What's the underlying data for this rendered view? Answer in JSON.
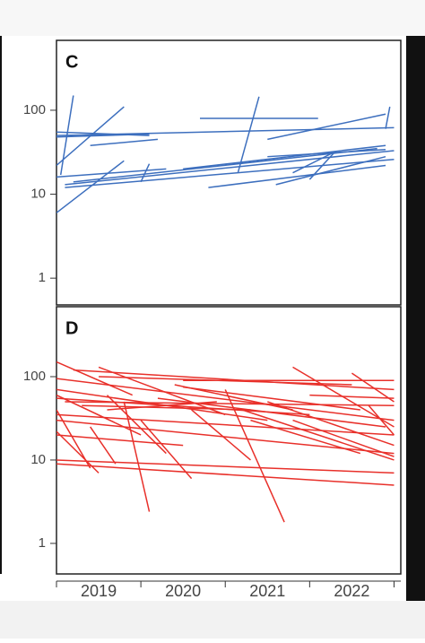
{
  "chart_data": [
    {
      "type": "line",
      "panel_label": "C",
      "log_y": true,
      "color": "#3d6fbe",
      "xlim": [
        2019,
        2023.08
      ],
      "ylim": [
        0.48,
        680
      ],
      "yticks": [
        1,
        10,
        100
      ],
      "series": [
        {
          "x": [
            2019.0,
            2020.1
          ],
          "values": [
            55,
            50
          ]
        },
        {
          "x": [
            2019.0,
            2020.1
          ],
          "values": [
            48,
            52
          ]
        },
        {
          "x": [
            2019.05,
            2019.2
          ],
          "values": [
            17,
            150
          ]
        },
        {
          "x": [
            2019.0,
            2019.8
          ],
          "values": [
            22,
            110
          ]
        },
        {
          "x": [
            2019.0,
            2020.3
          ],
          "values": [
            16,
            20
          ]
        },
        {
          "x": [
            2019.0,
            2019.8
          ],
          "values": [
            6,
            25
          ]
        },
        {
          "x": [
            2019.1,
            2023.0
          ],
          "values": [
            13,
            33
          ]
        },
        {
          "x": [
            2019.1,
            2023.0
          ],
          "values": [
            12,
            26
          ]
        },
        {
          "x": [
            2019.2,
            2022.8
          ],
          "values": [
            14,
            35
          ]
        },
        {
          "x": [
            2019.0,
            2023.0
          ],
          "values": [
            50,
            62
          ]
        },
        {
          "x": [
            2020.7,
            2022.1
          ],
          "values": [
            80,
            80
          ]
        },
        {
          "x": [
            2021.15,
            2021.4
          ],
          "values": [
            18,
            145
          ]
        },
        {
          "x": [
            2019.4,
            2020.2
          ],
          "values": [
            38,
            45
          ]
        },
        {
          "x": [
            2021.5,
            2022.9
          ],
          "values": [
            45,
            90
          ]
        },
        {
          "x": [
            2022.9,
            2022.95
          ],
          "values": [
            60,
            110
          ]
        },
        {
          "x": [
            2020.0,
            2020.1
          ],
          "values": [
            14,
            23
          ]
        },
        {
          "x": [
            2020.8,
            2022.9
          ],
          "values": [
            12,
            22
          ]
        },
        {
          "x": [
            2020.5,
            2022.9
          ],
          "values": [
            20,
            38
          ]
        },
        {
          "x": [
            2021.6,
            2022.9
          ],
          "values": [
            13,
            28
          ]
        },
        {
          "x": [
            2021.8,
            2022.3
          ],
          "values": [
            18,
            32
          ]
        },
        {
          "x": [
            2021.5,
            2022.9
          ],
          "values": [
            28,
            34
          ]
        },
        {
          "x": [
            2022.0,
            2022.3
          ],
          "values": [
            15,
            32
          ]
        }
      ]
    },
    {
      "type": "line",
      "panel_label": "D",
      "log_y": true,
      "color": "#e8302a",
      "xlim": [
        2019,
        2023.08
      ],
      "ylim": [
        0.43,
        690
      ],
      "yticks": [
        1,
        10,
        100
      ],
      "xtick_marks": [
        2019,
        2020,
        2021,
        2022,
        2023
      ],
      "xticks": [
        {
          "value": 2019.5,
          "label": "2019"
        },
        {
          "value": 2020.5,
          "label": "2020"
        },
        {
          "value": 2021.5,
          "label": "2021"
        },
        {
          "value": 2022.5,
          "label": "2022"
        }
      ],
      "series": [
        {
          "x": [
            2019.0,
            2019.9
          ],
          "values": [
            150,
            60
          ]
        },
        {
          "x": [
            2019.0,
            2023.0
          ],
          "values": [
            95,
            30
          ]
        },
        {
          "x": [
            2019.0,
            2021.5
          ],
          "values": [
            70,
            30
          ]
        },
        {
          "x": [
            2019.0,
            2020.0
          ],
          "values": [
            60,
            20
          ]
        },
        {
          "x": [
            2019.0,
            2019.4
          ],
          "values": [
            40,
            8
          ]
        },
        {
          "x": [
            2019.0,
            2023.0
          ],
          "values": [
            30,
            12
          ]
        },
        {
          "x": [
            2019.0,
            2019.5
          ],
          "values": [
            22,
            7
          ]
        },
        {
          "x": [
            2019.0,
            2023.0
          ],
          "values": [
            9,
            5
          ]
        },
        {
          "x": [
            2019.0,
            2023.0
          ],
          "values": [
            10,
            7
          ]
        },
        {
          "x": [
            2019.2,
            2023.0
          ],
          "values": [
            120,
            70
          ]
        },
        {
          "x": [
            2019.5,
            2022.5
          ],
          "values": [
            100,
            80
          ]
        },
        {
          "x": [
            2019.5,
            2021.0
          ],
          "values": [
            130,
            35
          ]
        },
        {
          "x": [
            2020.5,
            2023.0
          ],
          "values": [
            90,
            90
          ]
        },
        {
          "x": [
            2020.5,
            2022.6
          ],
          "values": [
            75,
            40
          ]
        },
        {
          "x": [
            2021.8,
            2023.0
          ],
          "values": [
            130,
            25
          ]
        },
        {
          "x": [
            2022.5,
            2023.0
          ],
          "values": [
            110,
            50
          ]
        },
        {
          "x": [
            2019.1,
            2023.0
          ],
          "values": [
            50,
            45
          ]
        },
        {
          "x": [
            2019.3,
            2021.3
          ],
          "values": [
            45,
            40
          ]
        },
        {
          "x": [
            2019.0,
            2023.0
          ],
          "values": [
            35,
            20
          ]
        },
        {
          "x": [
            2019.6,
            2020.3
          ],
          "values": [
            60,
            12
          ]
        },
        {
          "x": [
            2019.8,
            2020.1
          ],
          "values": [
            50,
            2.4
          ]
        },
        {
          "x": [
            2020.0,
            2020.6
          ],
          "values": [
            30,
            6
          ]
        },
        {
          "x": [
            2020.2,
            2022.9
          ],
          "values": [
            55,
            25
          ]
        },
        {
          "x": [
            2020.6,
            2021.3
          ],
          "values": [
            40,
            10
          ]
        },
        {
          "x": [
            2021.0,
            2021.7
          ],
          "values": [
            70,
            1.8
          ]
        },
        {
          "x": [
            2021.2,
            2023.0
          ],
          "values": [
            40,
            10
          ]
        },
        {
          "x": [
            2021.5,
            2023.0
          ],
          "values": [
            50,
            15
          ]
        },
        {
          "x": [
            2021.8,
            2023.0
          ],
          "values": [
            30,
            11
          ]
        },
        {
          "x": [
            2019.0,
            2020.5
          ],
          "values": [
            20,
            15
          ]
        },
        {
          "x": [
            2019.4,
            2019.7
          ],
          "values": [
            25,
            9
          ]
        },
        {
          "x": [
            2020.4,
            2021.8
          ],
          "values": [
            80,
            40
          ]
        },
        {
          "x": [
            2019.0,
            2022.0
          ],
          "values": [
            55,
            35
          ]
        },
        {
          "x": [
            2022.0,
            2023.0
          ],
          "values": [
            60,
            55
          ]
        },
        {
          "x": [
            2019.6,
            2020.9
          ],
          "values": [
            40,
            50
          ]
        },
        {
          "x": [
            2021.3,
            2022.6
          ],
          "values": [
            30,
            12
          ]
        },
        {
          "x": [
            2022.7,
            2023.0
          ],
          "values": [
            45,
            20
          ]
        }
      ]
    }
  ]
}
